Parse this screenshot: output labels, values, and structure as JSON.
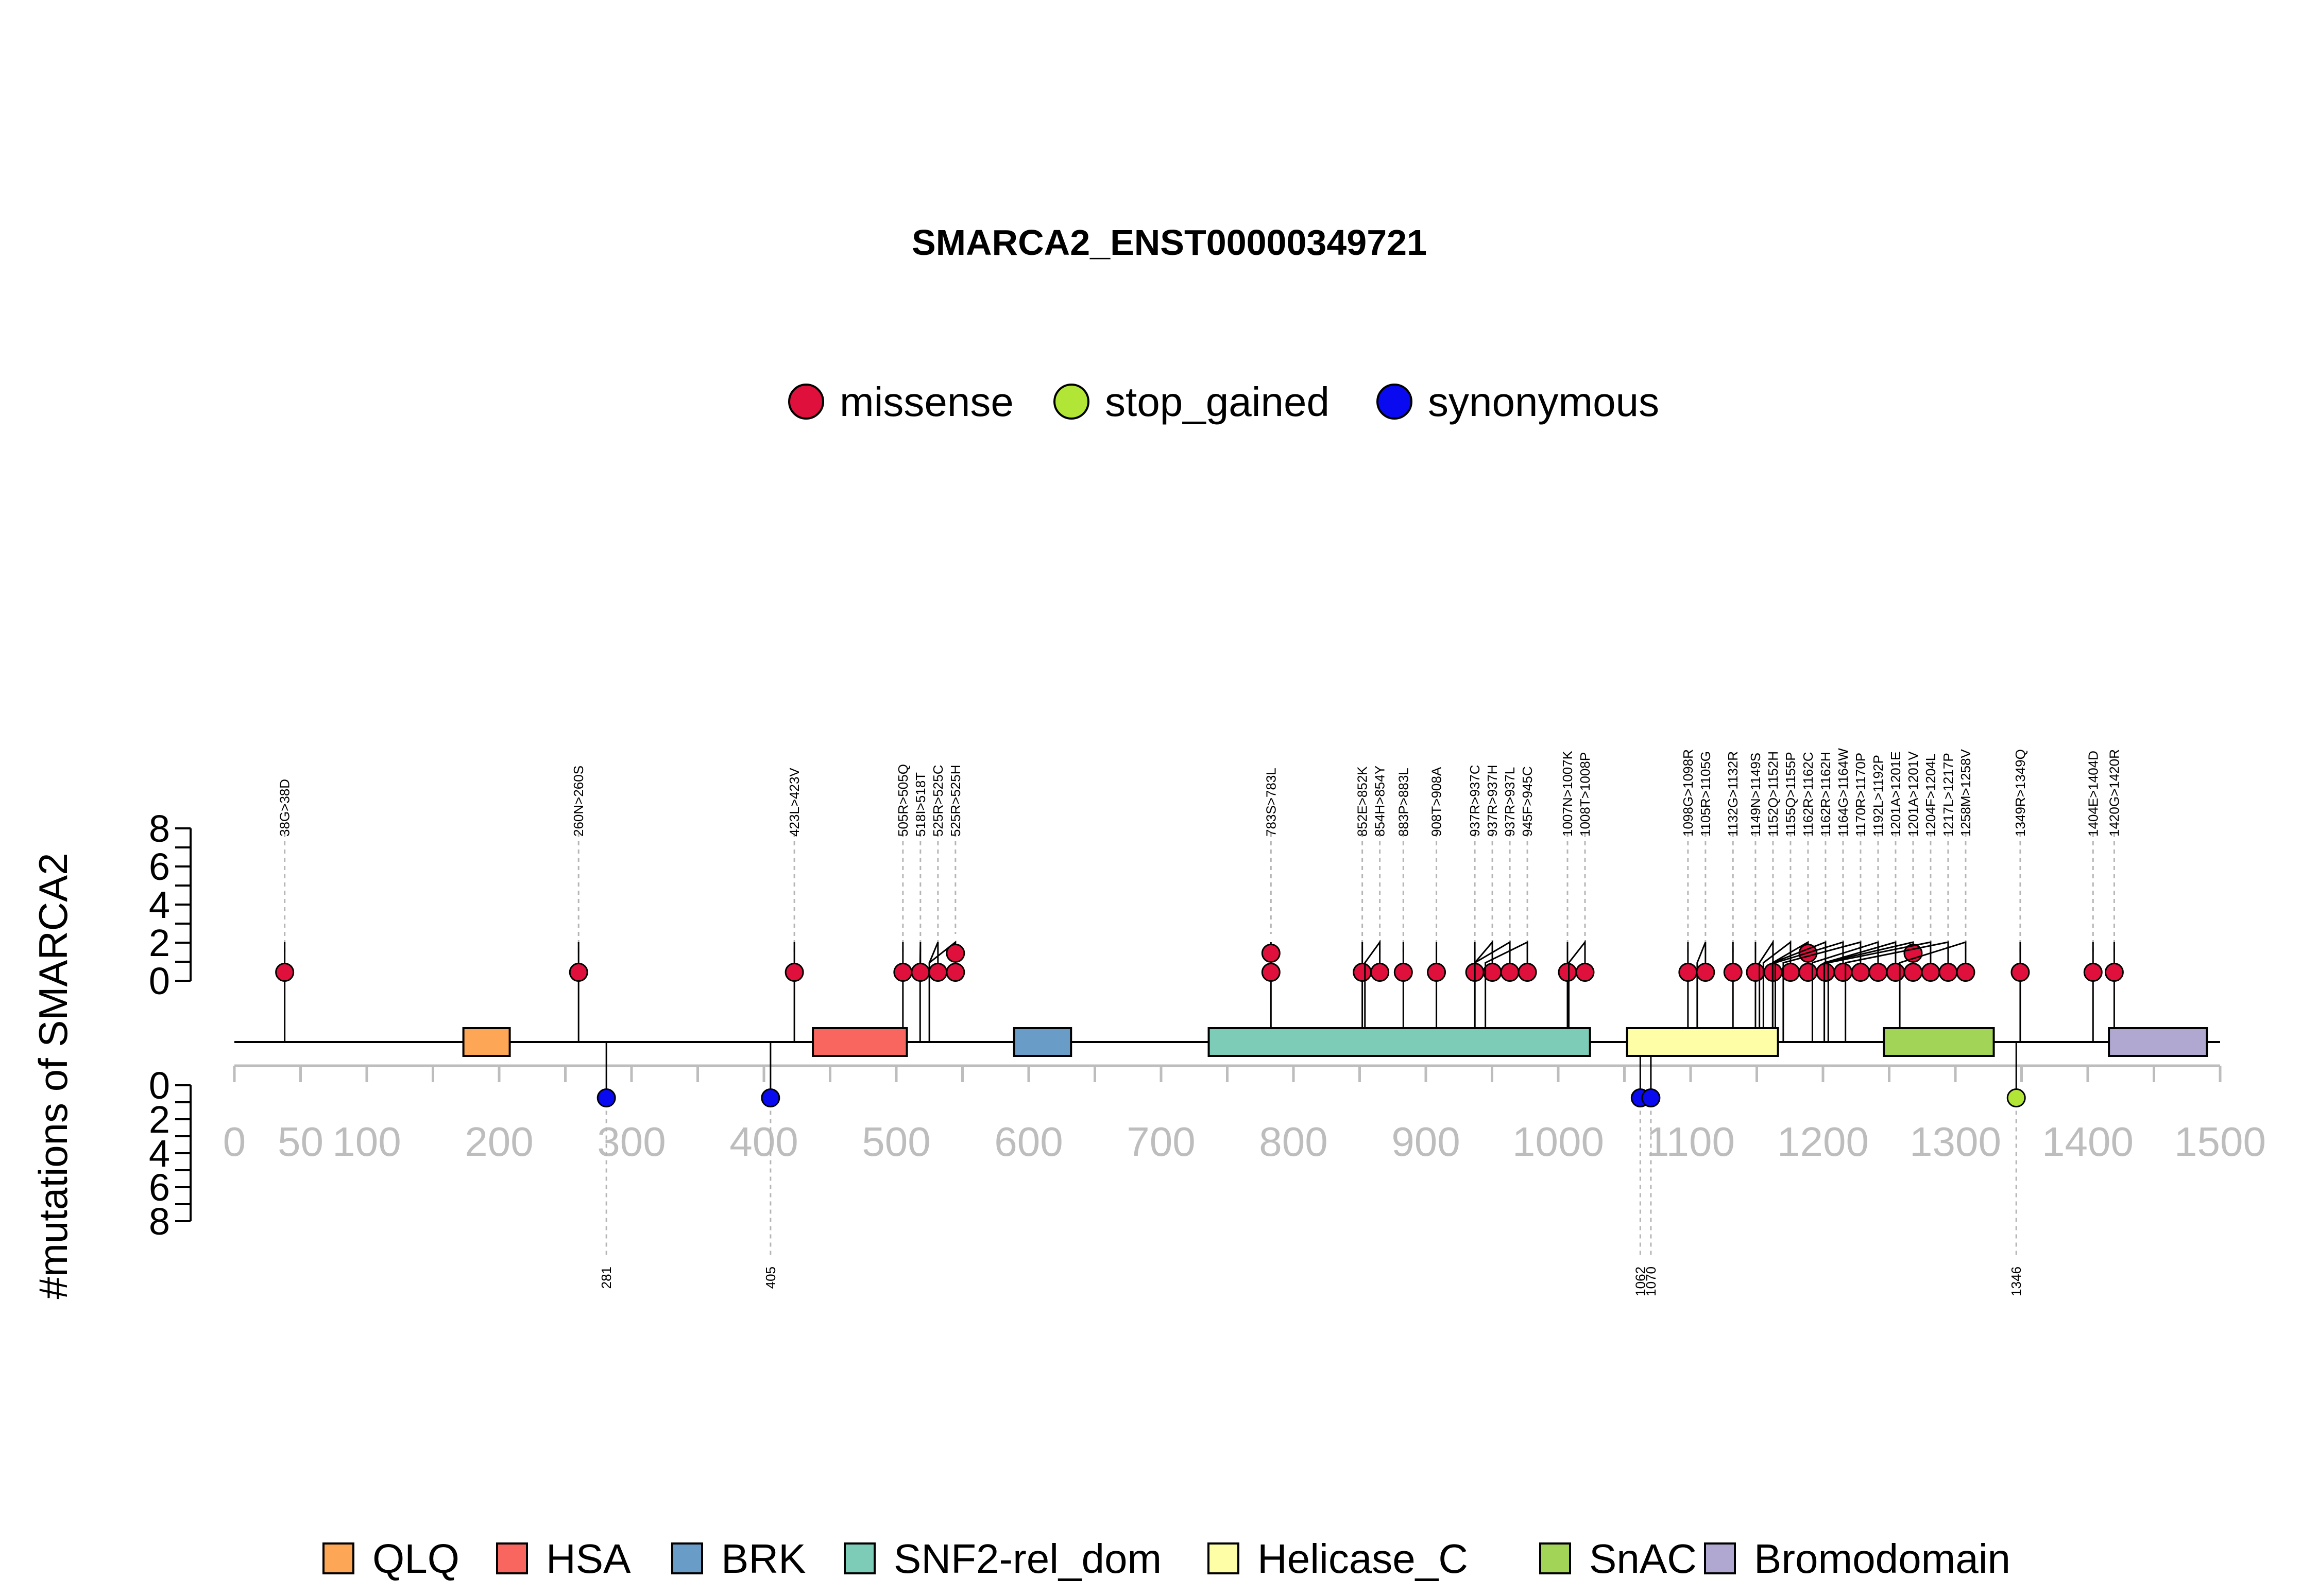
{
  "chart_data": {
    "type": "lollipop",
    "title": "SMARCA2_ENST00000349721",
    "ylabel": "#mutations of SMARCA2",
    "xlim": [
      0,
      1500
    ],
    "x_ticks": [
      0,
      50,
      100,
      200,
      300,
      400,
      500,
      600,
      700,
      800,
      900,
      1000,
      1100,
      1200,
      1300,
      1400,
      1500
    ],
    "y_ticks": [
      0,
      2,
      4,
      6,
      8
    ],
    "mutation_legend": [
      {
        "name": "missense",
        "color": "#E0103C"
      },
      {
        "name": "stop_gained",
        "color": "#B2E636"
      },
      {
        "name": "synonymous",
        "color": "#0A0AF0"
      }
    ],
    "domains": [
      {
        "name": "QLQ",
        "start": 173,
        "end": 208,
        "color": "#FDA656"
      },
      {
        "name": "HSA",
        "start": 437,
        "end": 508,
        "color": "#F8665F"
      },
      {
        "name": "BRK",
        "start": 589,
        "end": 632,
        "color": "#6A9CC8"
      },
      {
        "name": "SNF2-rel_dom",
        "start": 736,
        "end": 1024,
        "color": "#7DCCB8"
      },
      {
        "name": "Helicase_C",
        "start": 1052,
        "end": 1166,
        "color": "#FEFEA6"
      },
      {
        "name": "SnAC",
        "start": 1246,
        "end": 1329,
        "color": "#A2D458"
      },
      {
        "name": "Bromodomain",
        "start": 1416,
        "end": 1490,
        "color": "#B1A8D2"
      }
    ],
    "upper_mutations": [
      {
        "pos": 38,
        "label": "38G>38D",
        "count": 1,
        "type": "missense"
      },
      {
        "pos": 260,
        "label": "260N>260S",
        "count": 1,
        "type": "missense"
      },
      {
        "pos": 423,
        "label": "423L>423V",
        "count": 1,
        "type": "missense"
      },
      {
        "pos": 505,
        "label": "505R>505Q",
        "count": 1,
        "type": "missense"
      },
      {
        "pos": 518,
        "label": "518I>518T",
        "count": 1,
        "type": "missense"
      },
      {
        "pos": 525,
        "label": "525R>525C",
        "count": 1,
        "type": "missense"
      },
      {
        "pos": 525,
        "label": "525R>525H",
        "count": 2,
        "type": "missense"
      },
      {
        "pos": 783,
        "label": "783S>783L",
        "count": 2,
        "type": "missense"
      },
      {
        "pos": 852,
        "label": "852E>852K",
        "count": 1,
        "type": "missense"
      },
      {
        "pos": 854,
        "label": "854H>854Y",
        "count": 1,
        "type": "missense"
      },
      {
        "pos": 883,
        "label": "883P>883L",
        "count": 1,
        "type": "missense"
      },
      {
        "pos": 908,
        "label": "908T>908A",
        "count": 1,
        "type": "missense"
      },
      {
        "pos": 937,
        "label": "937R>937C",
        "count": 1,
        "type": "missense"
      },
      {
        "pos": 937,
        "label": "937R>937H",
        "count": 1,
        "type": "missense"
      },
      {
        "pos": 937,
        "label": "937R>937L",
        "count": 1,
        "type": "missense"
      },
      {
        "pos": 945,
        "label": "945F>945C",
        "count": 1,
        "type": "missense"
      },
      {
        "pos": 1007,
        "label": "1007N>1007K",
        "count": 1,
        "type": "missense"
      },
      {
        "pos": 1008,
        "label": "1008T>1008P",
        "count": 1,
        "type": "missense"
      },
      {
        "pos": 1098,
        "label": "1098G>1098R",
        "count": 1,
        "type": "missense"
      },
      {
        "pos": 1105,
        "label": "1105R>1105G",
        "count": 1,
        "type": "missense"
      },
      {
        "pos": 1132,
        "label": "1132G>1132R",
        "count": 1,
        "type": "missense"
      },
      {
        "pos": 1149,
        "label": "1149N>1149S",
        "count": 1,
        "type": "missense"
      },
      {
        "pos": 1152,
        "label": "1152Q>1152H",
        "count": 1,
        "type": "missense"
      },
      {
        "pos": 1155,
        "label": "1155Q>1155P",
        "count": 1,
        "type": "missense"
      },
      {
        "pos": 1162,
        "label": "1162R>1162C",
        "count": 2,
        "type": "missense"
      },
      {
        "pos": 1162,
        "label": "1162R>1162H",
        "count": 1,
        "type": "missense"
      },
      {
        "pos": 1164,
        "label": "1164G>1164W",
        "count": 1,
        "type": "missense"
      },
      {
        "pos": 1170,
        "label": "1170R>1170P",
        "count": 1,
        "type": "missense"
      },
      {
        "pos": 1192,
        "label": "1192L>1192P",
        "count": 1,
        "type": "missense"
      },
      {
        "pos": 1201,
        "label": "1201A>1201E",
        "count": 1,
        "type": "missense"
      },
      {
        "pos": 1201,
        "label": "1201A>1201V",
        "count": 2,
        "type": "missense"
      },
      {
        "pos": 1204,
        "label": "1204F>1204L",
        "count": 1,
        "type": "missense"
      },
      {
        "pos": 1217,
        "label": "1217L>1217P",
        "count": 1,
        "type": "missense"
      },
      {
        "pos": 1258,
        "label": "1258M>1258V",
        "count": 1,
        "type": "missense"
      },
      {
        "pos": 1349,
        "label": "1349R>1349Q",
        "count": 1,
        "type": "missense"
      },
      {
        "pos": 1404,
        "label": "1404E>1404D",
        "count": 1,
        "type": "missense"
      },
      {
        "pos": 1420,
        "label": "1420G>1420R",
        "count": 1,
        "type": "missense"
      }
    ],
    "lower_mutations": [
      {
        "pos": 281,
        "label": "281",
        "count": 1,
        "type": "synonymous"
      },
      {
        "pos": 405,
        "label": "405",
        "count": 1,
        "type": "synonymous"
      },
      {
        "pos": 1062,
        "label": "1062",
        "count": 1,
        "type": "synonymous"
      },
      {
        "pos": 1070,
        "label": "1070",
        "count": 1,
        "type": "synonymous"
      },
      {
        "pos": 1346,
        "label": "1346",
        "count": 1,
        "type": "stop_gained"
      }
    ]
  }
}
